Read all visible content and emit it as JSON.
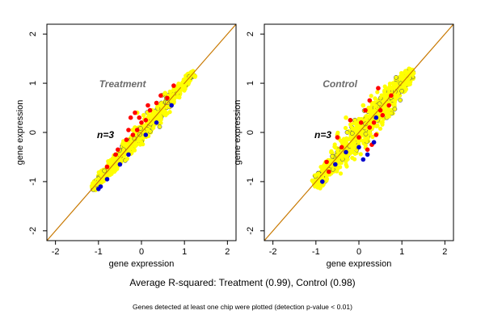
{
  "figure": {
    "summary_text": "Average R-squared: Treatment (0.99), Control (0.98)",
    "footnote_text": "Genes detected at least one chip were plotted (detection p-value < 0.01)",
    "colors": {
      "background": "#ffffff",
      "frame": "#000000",
      "diagonal": "#c87800",
      "cloud": "#ffff00",
      "upper": "#ff0000",
      "lower": "#0000cc",
      "edge": "#000080",
      "label_gray": "#6b6b6b"
    }
  },
  "chart_data": [
    {
      "type": "scatter",
      "title": "Treatment",
      "annotation": "n=3",
      "xlabel": "gene expression",
      "ylabel": "gene expression",
      "xlim": [
        -2.2,
        2.2
      ],
      "ylim": [
        -2.2,
        2.2
      ],
      "xticks": [
        "-2",
        "-1",
        "0",
        "1",
        "2"
      ],
      "yticks": [
        "-2",
        "-1",
        "0",
        "1",
        "2"
      ],
      "grid": false,
      "diagonal": "y = x",
      "r_squared": 0.99,
      "cloud": {
        "from": [
          -1.15,
          -1.15
        ],
        "to": [
          1.2,
          1.2
        ],
        "spread": 0.075
      },
      "series": [
        {
          "color": "yellow",
          "values": [
            [
              0.05,
              0.35
            ],
            [
              -0.15,
              0.1
            ],
            [
              -0.2,
              0.05
            ],
            [
              0.25,
              0.45
            ],
            [
              0.55,
              0.8
            ],
            [
              0.95,
              0.95
            ],
            [
              0.15,
              0.3
            ],
            [
              -0.05,
              0.3
            ],
            [
              -0.1,
              0.4
            ],
            [
              0.35,
              0.6
            ],
            [
              0.45,
              0.55
            ]
          ]
        },
        {
          "color": "red",
          "values": [
            [
              -0.15,
              0.4
            ],
            [
              -0.05,
              0.3
            ],
            [
              -0.3,
              0.05
            ],
            [
              -0.2,
              -0.05
            ],
            [
              -0.1,
              0.05
            ],
            [
              0.1,
              0.25
            ],
            [
              0.15,
              0.55
            ],
            [
              0.6,
              0.7
            ],
            [
              0.75,
              0.95
            ],
            [
              -0.55,
              -0.35
            ],
            [
              -0.8,
              -0.7
            ],
            [
              0.35,
              0.6
            ],
            [
              0.45,
              0.75
            ],
            [
              -0.35,
              -0.15
            ],
            [
              0.0,
              0.2
            ],
            [
              -0.6,
              -0.45
            ],
            [
              0.2,
              0.45
            ],
            [
              -0.25,
              0.3
            ]
          ]
        },
        {
          "color": "blue",
          "values": [
            [
              -1.0,
              -1.15
            ],
            [
              -0.95,
              -1.1
            ],
            [
              -0.8,
              -0.95
            ],
            [
              -0.5,
              -0.65
            ],
            [
              -0.3,
              -0.45
            ],
            [
              0.1,
              -0.05
            ],
            [
              0.35,
              0.2
            ],
            [
              0.7,
              0.55
            ]
          ]
        }
      ]
    },
    {
      "type": "scatter",
      "title": "Control",
      "annotation": "n=3",
      "xlabel": "gene expression",
      "ylabel": "gene expression",
      "xlim": [
        -2.2,
        2.2
      ],
      "ylim": [
        -2.2,
        2.2
      ],
      "xticks": [
        "-2",
        "-1",
        "0",
        "1",
        "2"
      ],
      "yticks": [
        "-2",
        "-1",
        "0",
        "1",
        "2"
      ],
      "grid": false,
      "diagonal": "y = x",
      "r_squared": 0.98,
      "cloud": {
        "from": [
          -1.0,
          -1.05
        ],
        "to": [
          1.25,
          1.25
        ],
        "spread": 0.13
      },
      "series": [
        {
          "color": "yellow",
          "values": [
            [
              -0.2,
              0.25
            ],
            [
              -0.3,
              0.3
            ],
            [
              0.3,
              0.6
            ],
            [
              0.6,
              0.85
            ],
            [
              0.1,
              0.55
            ],
            [
              -0.5,
              -0.05
            ],
            [
              0.55,
              0.4
            ],
            [
              0.0,
              0.1
            ],
            [
              0.25,
              0.0
            ],
            [
              0.4,
              0.25
            ],
            [
              0.8,
              1.0
            ]
          ]
        },
        {
          "color": "red",
          "values": [
            [
              0.45,
              0.9
            ],
            [
              0.25,
              0.65
            ],
            [
              0.4,
              -0.05
            ],
            [
              0.3,
              -0.25
            ],
            [
              0.2,
              -0.35
            ],
            [
              0.5,
              0.45
            ],
            [
              0.7,
              0.55
            ],
            [
              0.75,
              0.75
            ],
            [
              0.05,
              0.2
            ],
            [
              -0.2,
              0.25
            ],
            [
              -0.5,
              -0.1
            ],
            [
              0.35,
              0.2
            ],
            [
              0.15,
              0.45
            ],
            [
              -0.4,
              -0.3
            ],
            [
              0.0,
              -0.1
            ],
            [
              -0.7,
              -0.8
            ],
            [
              -0.75,
              -0.6
            ],
            [
              0.25,
              0.1
            ],
            [
              0.55,
              0.35
            ]
          ]
        },
        {
          "color": "blue",
          "values": [
            [
              0.1,
              -0.55
            ],
            [
              0.2,
              -0.45
            ],
            [
              -0.85,
              -1.0
            ],
            [
              -0.55,
              -0.65
            ],
            [
              0.35,
              -0.2
            ],
            [
              0.0,
              -0.3
            ],
            [
              -0.3,
              -0.4
            ],
            [
              0.4,
              0.3
            ]
          ]
        }
      ]
    }
  ]
}
